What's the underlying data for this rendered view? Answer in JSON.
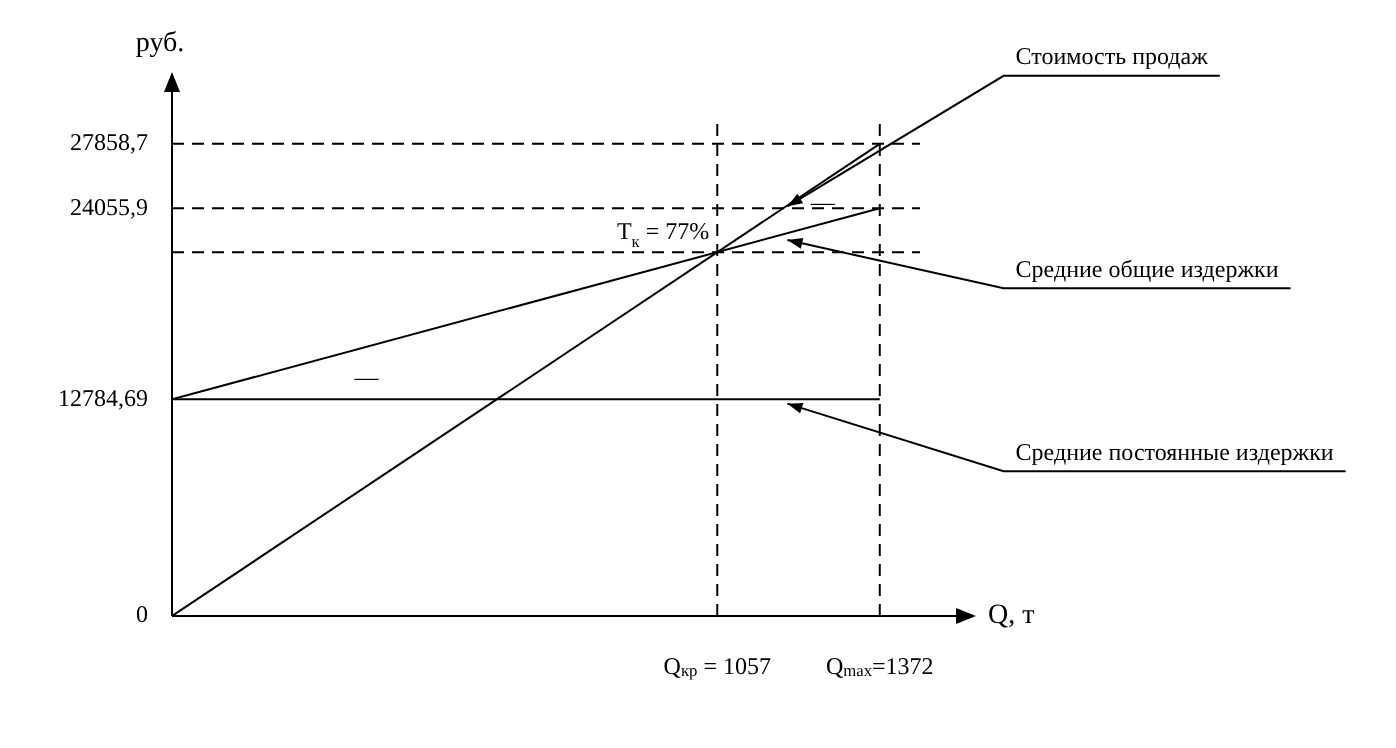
{
  "chart_data": {
    "type": "line",
    "ylabel": "руб.",
    "xlabel": "Q, т",
    "xlim": [
      0,
      1450
    ],
    "ylim": [
      0,
      29500
    ],
    "xticks": [
      {
        "value": 1057,
        "label": "Q$_{кр}$ = 1057"
      },
      {
        "value": 1372,
        "label": "Q$_{max}$=1372"
      }
    ],
    "yticks": [
      0,
      {
        "value": 12784.69,
        "label": "12784,69"
      },
      {
        "value": 24055.9,
        "label": "24055,9"
      },
      {
        "value": 27858.7,
        "label": "27858,7"
      }
    ],
    "x": [
      0,
      1372
    ],
    "series": [
      {
        "name": "Стоимость продаж",
        "color": "#000000",
        "values": [
          0,
          27858.7
        ]
      },
      {
        "name": "Средние общие издержки",
        "color": "#000000",
        "values": [
          12784.69,
          24055.9
        ]
      },
      {
        "name": "Средние постоянные издержки",
        "color": "#000000",
        "values": [
          12784.69,
          12784.69
        ]
      }
    ],
    "ref_lines": [
      {
        "axis": "y",
        "value": 27858.7,
        "color": "#000000",
        "line_style": "dashed"
      },
      {
        "axis": "y",
        "value": 24055.9,
        "color": "#000000",
        "line_style": "dashed"
      },
      {
        "axis": "y",
        "value": 21463,
        "color": "#000000",
        "line_style": "dashed"
      },
      {
        "axis": "x",
        "value": 1057,
        "color": "#000000",
        "line_style": "dashed"
      },
      {
        "axis": "x",
        "value": 1372,
        "color": "#000000",
        "line_style": "dashed"
      }
    ],
    "annotations": [
      {
        "text": "T$_{к}$ = 77%",
        "x": 1057,
        "y": 21463
      },
      "—",
      "—"
    ],
    "marker": "none",
    "line_style": "solid",
    "grid": false,
    "legend": false
  }
}
